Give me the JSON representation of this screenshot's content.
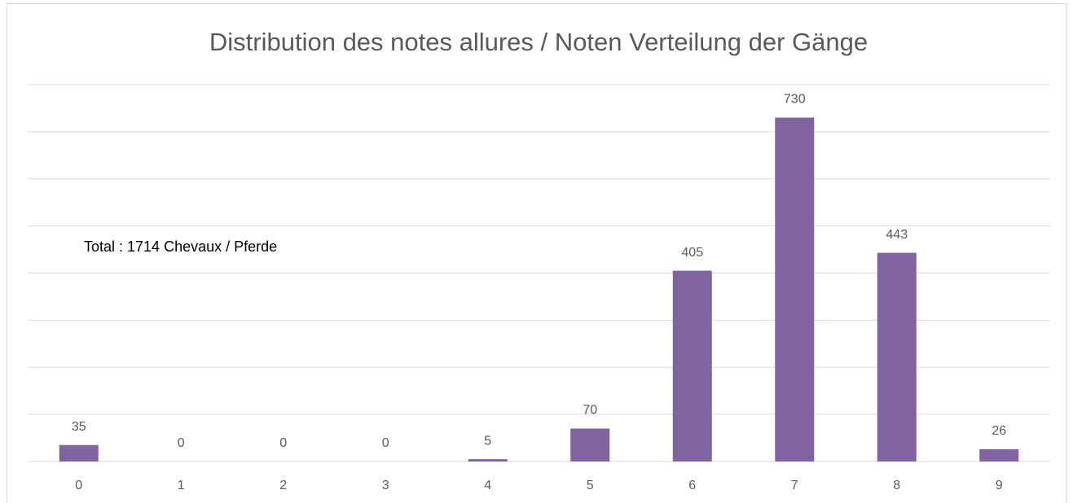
{
  "chart_data": {
    "type": "bar",
    "title": "Distribution des notes allures / Noten Verteilung der Gänge",
    "annotation": "Total : 1714 Chevaux / Pferde",
    "categories": [
      "0",
      "1",
      "2",
      "3",
      "4",
      "5",
      "6",
      "7",
      "8",
      "9"
    ],
    "values": [
      35,
      0,
      0,
      0,
      5,
      70,
      405,
      730,
      443,
      26
    ],
    "color": "#8064a2",
    "ylim": [
      0,
      800
    ],
    "yticks": [
      0,
      100,
      200,
      300,
      400,
      500,
      600,
      700,
      800
    ],
    "grid": true
  }
}
